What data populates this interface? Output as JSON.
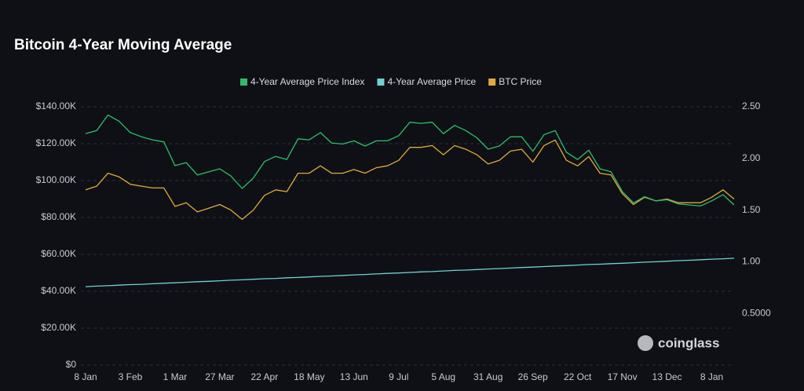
{
  "chart_data": {
    "type": "line",
    "title": "Bitcoin 4-Year Moving Average",
    "watermark": "coinglass",
    "categories": [
      "8 Jan",
      null,
      null,
      null,
      "3 Feb",
      null,
      null,
      null,
      "1 Mar",
      null,
      null,
      null,
      "27 Mar",
      null,
      null,
      null,
      "22 Apr",
      null,
      null,
      null,
      "18 May",
      null,
      null,
      null,
      "13 Jun",
      null,
      null,
      null,
      "9 Jul",
      null,
      null,
      null,
      "5 Aug",
      null,
      null,
      null,
      "31 Aug",
      null,
      null,
      null,
      "26 Sep",
      null,
      null,
      null,
      "22 Oct",
      null,
      null,
      null,
      "17 Nov",
      null,
      null,
      null,
      "13 Dec",
      null,
      null,
      null,
      "8 Jan",
      null,
      null
    ],
    "series": [
      {
        "name": "4-Year Average Price Index",
        "color": "#2ebd6b",
        "axis": "y2",
        "values": [
          2.24,
          2.27,
          2.42,
          2.36,
          2.25,
          2.21,
          2.18,
          2.16,
          1.93,
          1.96,
          1.84,
          1.87,
          1.9,
          1.83,
          1.71,
          1.81,
          1.97,
          2.02,
          1.99,
          2.19,
          2.18,
          2.25,
          2.15,
          2.14,
          2.17,
          2.12,
          2.17,
          2.17,
          2.22,
          2.35,
          2.34,
          2.35,
          2.24,
          2.32,
          2.27,
          2.2,
          2.09,
          2.12,
          2.21,
          2.21,
          2.07,
          2.23,
          2.27,
          2.06,
          1.99,
          2.08,
          1.9,
          1.87,
          1.68,
          1.57,
          1.63,
          1.59,
          1.6,
          1.56,
          1.55,
          1.54,
          1.59,
          1.65,
          1.55
        ]
      },
      {
        "name": "4-Year Average Price",
        "color": "#6fd3d0",
        "values": [
          42500,
          42800,
          43000,
          43300,
          43600,
          43800,
          44100,
          44400,
          44600,
          44900,
          45200,
          45400,
          45700,
          46000,
          46200,
          46500,
          46800,
          47000,
          47300,
          47500,
          47800,
          48100,
          48300,
          48600,
          48900,
          49100,
          49400,
          49700,
          49900,
          50200,
          50500,
          50700,
          51000,
          51300,
          51500,
          51800,
          52100,
          52300,
          52600,
          52900,
          53100,
          53400,
          53700,
          53900,
          54200,
          54500,
          54700,
          55000,
          55200,
          55500,
          55800,
          56000,
          56300,
          56600,
          56800,
          57100,
          57400,
          57600,
          57900
        ]
      },
      {
        "name": "BTC Price",
        "color": "#e3a93b",
        "values": [
          95000,
          97000,
          104000,
          102000,
          98000,
          97000,
          96000,
          96000,
          86000,
          88000,
          83000,
          85000,
          87000,
          84000,
          79000,
          84000,
          92000,
          95000,
          94000,
          104000,
          104000,
          108000,
          104000,
          104000,
          106000,
          104000,
          107000,
          108000,
          111000,
          118000,
          118000,
          119000,
          114000,
          119000,
          117000,
          114000,
          109000,
          111000,
          116000,
          117000,
          110000,
          119000,
          122000,
          111000,
          108000,
          113000,
          104000,
          103000,
          93000,
          87000,
          91000,
          89000,
          90000,
          88000,
          88000,
          88000,
          91000,
          95000,
          90000
        ]
      }
    ],
    "ylim": [
      0,
      140000
    ],
    "yticks": [
      {
        "value": 0,
        "label": "$0"
      },
      {
        "value": 20000,
        "label": "$20.00K"
      },
      {
        "value": 40000,
        "label": "$40.00K"
      },
      {
        "value": 60000,
        "label": "$60.00K"
      },
      {
        "value": 80000,
        "label": "$80.00K"
      },
      {
        "value": 100000,
        "label": "$100.00K"
      },
      {
        "value": 120000,
        "label": "$120.00K"
      },
      {
        "value": 140000,
        "label": "$140.00K"
      }
    ],
    "y2lim": [
      0,
      2.5
    ],
    "y2ticks": [
      {
        "value": 0.5,
        "label": "0.5000"
      },
      {
        "value": 1,
        "label": "1.00"
      },
      {
        "value": 1.5,
        "label": "1.50"
      },
      {
        "value": 2,
        "label": "2.00"
      },
      {
        "value": 2.5,
        "label": "2.50"
      }
    ],
    "grid": true,
    "legend": "top"
  }
}
